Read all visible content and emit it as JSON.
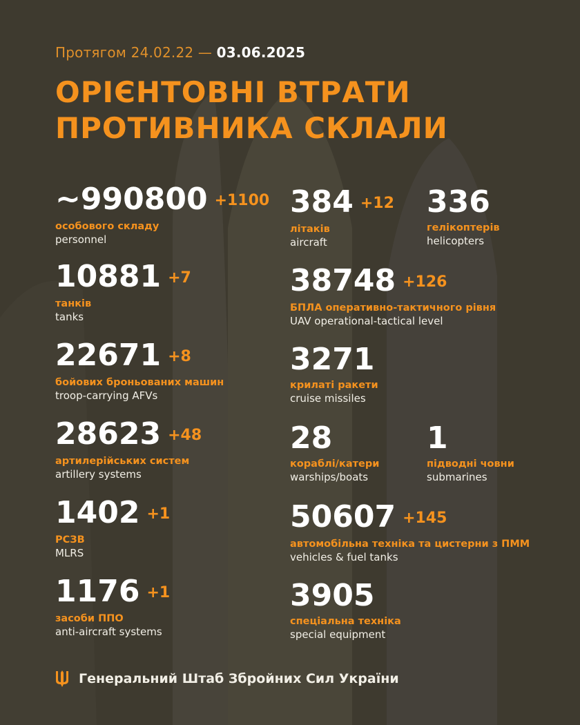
{
  "header": {
    "period_prefix": "Протягом 24.02.22 —",
    "period_end": "03.06.2025",
    "title_line1": "ОРІЄНТОВНІ ВТРАТИ",
    "title_line2": "ПРОТИВНИКА СКЛАЛИ"
  },
  "colors": {
    "background": "#3e3a2f",
    "accent": "#f5921e",
    "text": "#ffffff"
  },
  "left": [
    {
      "value": "~990800",
      "delta": "+1100",
      "ua": "особового складу",
      "en": "personnel"
    },
    {
      "value": "10881",
      "delta": "+7",
      "ua": "танків",
      "en": "tanks"
    },
    {
      "value": "22671",
      "delta": "+8",
      "ua": "бойових броньованих машин",
      "en": "troop-carrying AFVs"
    },
    {
      "value": "28623",
      "delta": "+48",
      "ua": "артилерійських систем",
      "en": "artillery systems"
    },
    {
      "value": "1402",
      "delta": "+1",
      "ua": "РСЗВ",
      "en": "MLRS"
    },
    {
      "value": "1176",
      "delta": "+1",
      "ua": "засоби ППО",
      "en": "anti-aircraft systems"
    }
  ],
  "right": [
    {
      "value": "384",
      "delta": "+12",
      "ua": "літаків",
      "en": "aircraft"
    },
    {
      "value": "336",
      "delta": "",
      "ua": "гелікоптерів",
      "en": "helicopters"
    },
    {
      "value": "38748",
      "delta": "+126",
      "ua": "БПЛА оперативно-тактичного рівня",
      "en": "UAV operational-tactical level"
    },
    {
      "value": "3271",
      "delta": "",
      "ua": "крилаті ракети",
      "en": "cruise missiles"
    },
    {
      "value": "28",
      "delta": "",
      "ua": "кораблі/катери",
      "en": "warships/boats"
    },
    {
      "value": "1",
      "delta": "",
      "ua": "підводні човни",
      "en": "submarines"
    },
    {
      "value": "50607",
      "delta": "+145",
      "ua": "автомобільна техніка та цистерни з ПММ",
      "en": "vehicles & fuel tanks"
    },
    {
      "value": "3905",
      "delta": "",
      "ua": "спеціальна техніка",
      "en": "special equipment"
    }
  ],
  "footer": {
    "logo_icon": "trident-icon",
    "text": "Генеральний Штаб Збройних Сил України"
  }
}
